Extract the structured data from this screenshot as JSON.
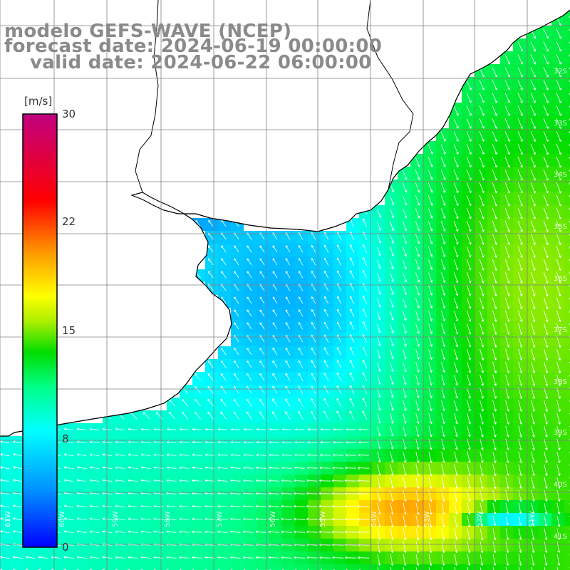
{
  "title": {
    "line1": "modelo GEFS-WAVE (NCEP)",
    "line2": "forecast date: 2024-06-19 00:00:00",
    "line3": "valid date: 2024-06-22 06:00:00"
  },
  "colorbar": {
    "unit": "[m/s]",
    "ticks": [
      "30",
      "22",
      "15",
      "8",
      "0"
    ],
    "tick_values": [
      30,
      22,
      15,
      8,
      0
    ],
    "colors": [
      "#0000ff",
      "#00aaff",
      "#00ffff",
      "#00ff66",
      "#00dd00",
      "#aaff00",
      "#ffff00",
      "#ff9900",
      "#ff2200",
      "#ff0000",
      "#cc0066"
    ]
  },
  "map": {
    "lat_labels": [
      "32S",
      "33S",
      "34S",
      "35S",
      "36S",
      "37S",
      "38S",
      "39S",
      "40S",
      "41S"
    ],
    "lon_labels": [
      "61W",
      "60W",
      "59W",
      "58W",
      "57W",
      "56W",
      "55W",
      "54W",
      "53W",
      "52W",
      "51W"
    ],
    "land_color": "#ffffff",
    "coast_color": "#000000",
    "grid_color": "#808080",
    "arrow_color": "#ffffff"
  }
}
